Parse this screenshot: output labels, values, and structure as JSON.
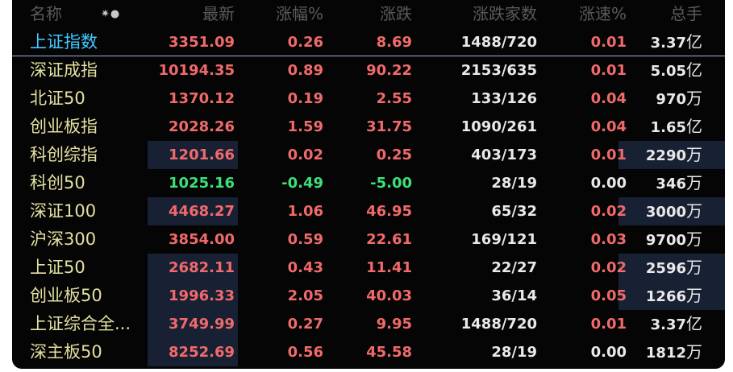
{
  "header": {
    "name": "名称",
    "icons": "✷●",
    "latest": "最新",
    "change_pct": "涨幅%",
    "change": "涨跌",
    "up_down_count": "涨跌家数",
    "speed": "涨速%",
    "turnover": "总手"
  },
  "rows": [
    {
      "name": "上证指数",
      "latest": "3351.09",
      "change_pct": "0.26",
      "change": "8.69",
      "up_down": "1488/720",
      "speed": "0.01",
      "turnover_num": "3.37",
      "turnover_unit": "亿",
      "direction": "up",
      "speed_color": "red"
    },
    {
      "name": "深证成指",
      "latest": "10194.35",
      "change_pct": "0.89",
      "change": "90.22",
      "up_down": "2153/635",
      "speed": "0.01",
      "turnover_num": "5.05",
      "turnover_unit": "亿",
      "direction": "up",
      "speed_color": "red"
    },
    {
      "name": "北证50",
      "latest": "1370.12",
      "change_pct": "0.19",
      "change": "2.55",
      "up_down": "133/126",
      "speed": "0.04",
      "turnover_num": "970",
      "turnover_unit": "万",
      "direction": "up",
      "speed_color": "red"
    },
    {
      "name": "创业板指",
      "latest": "2028.26",
      "change_pct": "1.59",
      "change": "31.75",
      "up_down": "1090/261",
      "speed": "0.04",
      "turnover_num": "1.65",
      "turnover_unit": "亿",
      "direction": "up",
      "speed_color": "red"
    },
    {
      "name": "科创综指",
      "latest": "1201.66",
      "change_pct": "0.02",
      "change": "0.25",
      "up_down": "403/173",
      "speed": "0.01",
      "turnover_num": "2290",
      "turnover_unit": "万",
      "direction": "up",
      "speed_color": "red"
    },
    {
      "name": "科创50",
      "latest": "1025.16",
      "change_pct": "-0.49",
      "change": "-5.00",
      "up_down": "28/19",
      "speed": "0.00",
      "turnover_num": "346",
      "turnover_unit": "万",
      "direction": "down",
      "speed_color": "white"
    },
    {
      "name": "深证100",
      "latest": "4468.27",
      "change_pct": "1.06",
      "change": "46.95",
      "up_down": "65/32",
      "speed": "0.02",
      "turnover_num": "3000",
      "turnover_unit": "万",
      "direction": "up",
      "speed_color": "red"
    },
    {
      "name": "沪深300",
      "latest": "3854.00",
      "change_pct": "0.59",
      "change": "22.61",
      "up_down": "169/121",
      "speed": "0.03",
      "turnover_num": "9700",
      "turnover_unit": "万",
      "direction": "up",
      "speed_color": "red"
    },
    {
      "name": "上证50",
      "latest": "2682.11",
      "change_pct": "0.43",
      "change": "11.41",
      "up_down": "22/27",
      "speed": "0.02",
      "turnover_num": "2596",
      "turnover_unit": "万",
      "direction": "up",
      "speed_color": "red"
    },
    {
      "name": "创业板50",
      "latest": "1996.33",
      "change_pct": "2.05",
      "change": "40.03",
      "up_down": "36/14",
      "speed": "0.05",
      "turnover_num": "1266",
      "turnover_unit": "万",
      "direction": "up",
      "speed_color": "red"
    },
    {
      "name": "上证综合全...",
      "latest": "3749.99",
      "change_pct": "0.27",
      "change": "9.95",
      "up_down": "1488/720",
      "speed": "0.01",
      "turnover_num": "3.37",
      "turnover_unit": "亿",
      "direction": "up",
      "speed_color": "red"
    },
    {
      "name": "深主板50",
      "latest": "8252.69",
      "change_pct": "0.56",
      "change": "45.58",
      "up_down": "28/19",
      "speed": "0.00",
      "turnover_num": "1812",
      "turnover_unit": "万",
      "direction": "up",
      "speed_color": "white"
    }
  ],
  "colors": {
    "up": "#f06a6a",
    "down": "#3ce07a",
    "neutral": "#e9e9e9",
    "name": "#e4e0a0",
    "selected_name": "#43c8ff",
    "header": "#5a5a5a",
    "highlight_bg": "#182034",
    "background": "#050505"
  }
}
